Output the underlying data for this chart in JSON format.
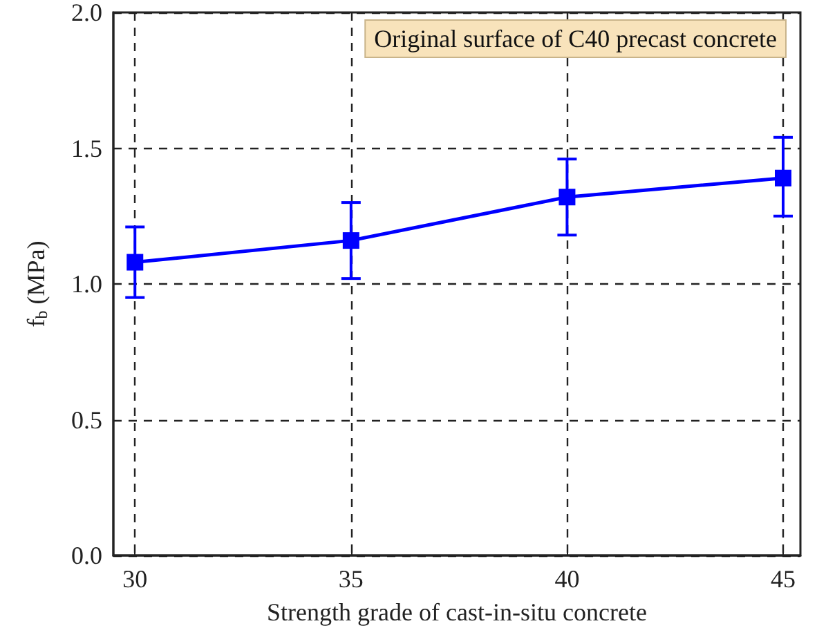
{
  "chart_data": {
    "type": "line",
    "xlabel": "Strength grade of cast-in-situ concrete",
    "ylabel": "f$_{b}$ (MPa)",
    "annotations": [
      "Original surface of C40 precast concrete"
    ],
    "x": [
      30,
      35,
      40,
      45
    ],
    "series": [
      {
        "color": "#0000ff",
        "values": [
          1.08,
          1.16,
          1.32,
          1.39
        ],
        "errors": [
          [
            0.95,
            1.21
          ],
          [
            1.02,
            1.3
          ],
          [
            1.18,
            1.46
          ],
          [
            1.25,
            1.54
          ]
        ]
      }
    ],
    "xlim": [
      29.5,
      45.4
    ],
    "xticks": [
      30,
      35,
      40,
      45
    ],
    "ylim": [
      0,
      2
    ],
    "yticks": [
      {
        "value": 0,
        "label": "0.0"
      },
      0.5,
      {
        "value": 1,
        "label": "1.0"
      },
      1.5,
      {
        "value": 2,
        "label": "2.0"
      }
    ],
    "grid": true,
    "marker": "square",
    "line_style": "solid"
  }
}
